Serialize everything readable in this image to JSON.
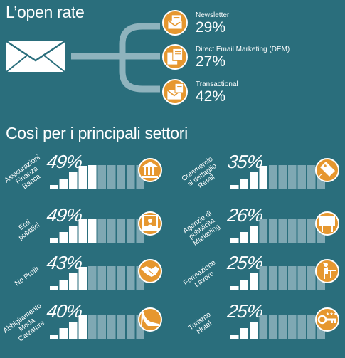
{
  "header": {
    "title": "L’open rate"
  },
  "email_types": [
    {
      "label": "Newsletter",
      "value_text": "29%",
      "icon": "newsletter-icon"
    },
    {
      "label": "Direct Email Marketing (DEM)",
      "value_text": "27%",
      "icon": "dem-icon"
    },
    {
      "label": "Transactional",
      "value_text": "42%",
      "icon": "transactional-icon"
    }
  ],
  "sectors_section": {
    "title": "Così per i principali settori"
  },
  "sectors": [
    {
      "lines": [
        "Assicurazioni",
        "Finanza",
        "Banca"
      ],
      "value_text": "49%",
      "icon": "bank-icon"
    },
    {
      "lines": [
        "Enti",
        "pubblici"
      ],
      "value_text": "49%",
      "icon": "public-office-icon"
    },
    {
      "lines": [
        "No Profit"
      ],
      "value_text": "43%",
      "icon": "handshake-icon"
    },
    {
      "lines": [
        "Abbigliamento",
        "Moda",
        "Calzature"
      ],
      "value_text": "40%",
      "icon": "shoe-icon"
    },
    {
      "lines": [
        "Commercio",
        "al dettaglio",
        "Retail"
      ],
      "value_text": "35%",
      "icon": "price-tag-icon"
    },
    {
      "lines": [
        "Agenzie di",
        "pubblicità",
        "Marketing"
      ],
      "value_text": "26%",
      "icon": "billboard-icon"
    },
    {
      "lines": [
        "Formazione",
        "Lavoro"
      ],
      "value_text": "25%",
      "icon": "teacher-icon"
    },
    {
      "lines": [
        "Turismo",
        "Hotel"
      ],
      "value_text": "25%",
      "icon": "hotel-icon"
    }
  ],
  "chart_data": [
    {
      "type": "bar",
      "title": "L’open rate",
      "categories": [
        "Newsletter",
        "Direct Email Marketing (DEM)",
        "Transactional"
      ],
      "values": [
        29,
        27,
        42
      ],
      "unit": "%"
    },
    {
      "type": "bar",
      "title": "Così per i principali settori",
      "categories": [
        "Assicurazioni Finanza Banca",
        "Enti pubblici",
        "No Profit",
        "Abbigliamento Moda Calzature",
        "Commercio al dettaglio Retail",
        "Agenzie di pubblicità Marketing",
        "Formazione Lavoro",
        "Turismo Hotel"
      ],
      "values": [
        49,
        49,
        43,
        40,
        35,
        26,
        25,
        25
      ],
      "unit": "%",
      "ylim": [
        0,
        100
      ]
    }
  ],
  "colors": {
    "background": "#2a6e7c",
    "bar_filled": "#ffffff",
    "bar_empty": "#7fa8b3",
    "icon_fill": "#e6972f",
    "connector": "#8fb3bd"
  }
}
